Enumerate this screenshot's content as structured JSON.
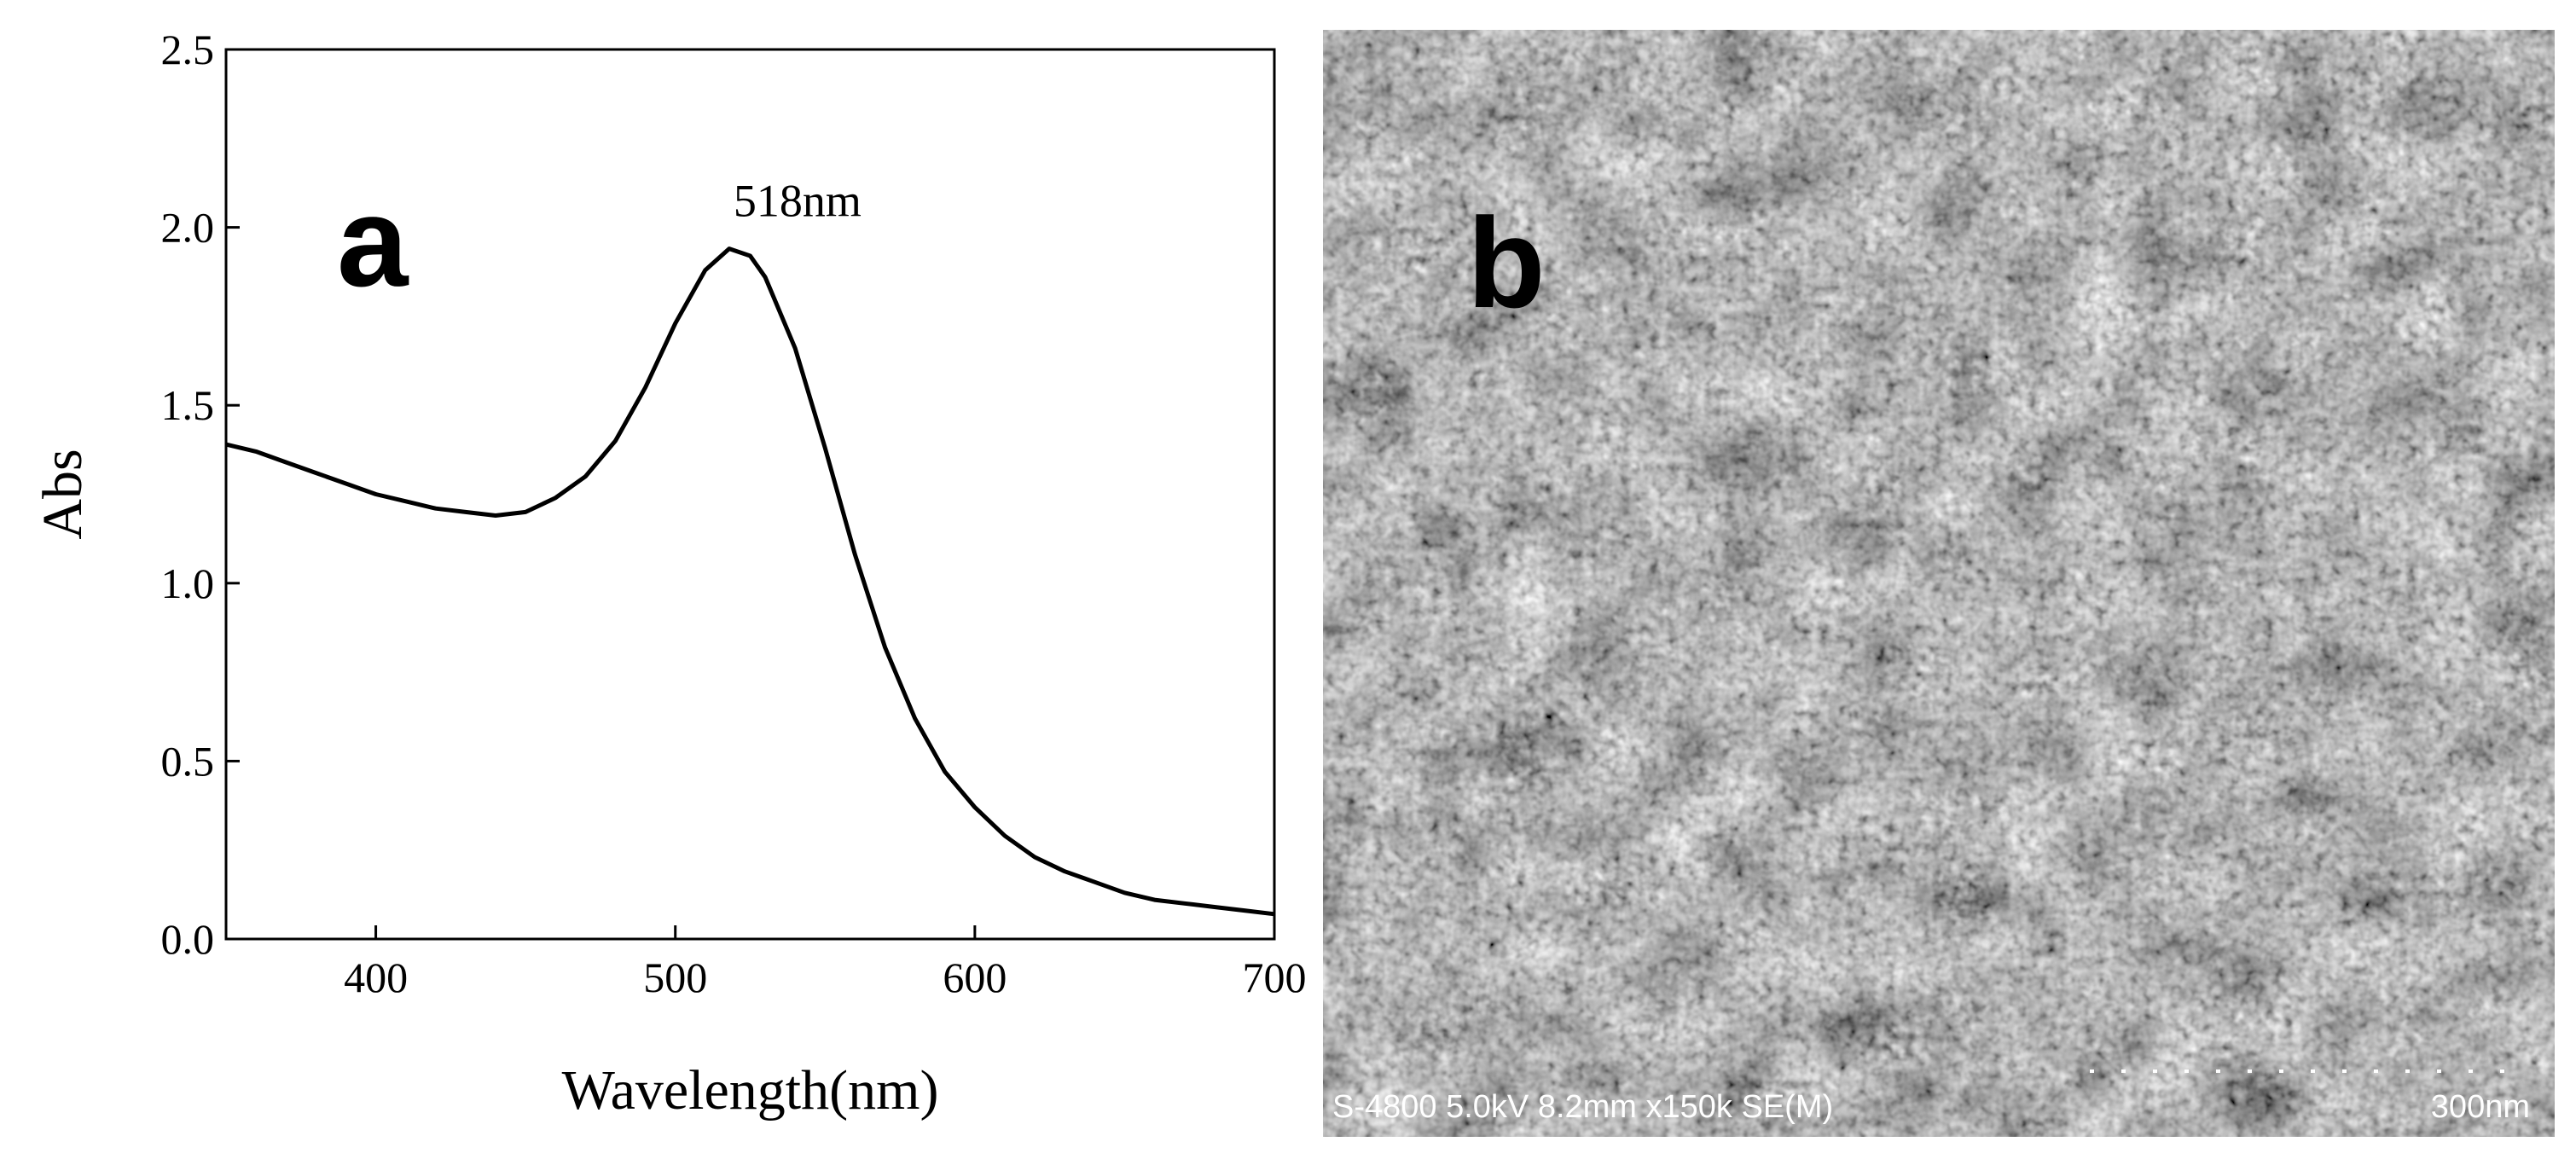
{
  "chart_data": {
    "type": "line",
    "panel_label": "a",
    "xlabel": "Wavelength(nm)",
    "ylabel": "Abs",
    "annotation": "518nm",
    "annotation_x": 518,
    "x": [
      350,
      360,
      370,
      380,
      390,
      400,
      410,
      420,
      430,
      440,
      450,
      460,
      470,
      480,
      490,
      500,
      510,
      518,
      525,
      530,
      540,
      550,
      560,
      570,
      580,
      590,
      600,
      610,
      620,
      630,
      640,
      650,
      660,
      670,
      680,
      690,
      700
    ],
    "values": [
      1.39,
      1.37,
      1.34,
      1.31,
      1.28,
      1.25,
      1.23,
      1.21,
      1.2,
      1.19,
      1.2,
      1.24,
      1.3,
      1.4,
      1.55,
      1.73,
      1.88,
      1.94,
      1.92,
      1.86,
      1.66,
      1.38,
      1.08,
      0.82,
      0.62,
      0.47,
      0.37,
      0.29,
      0.23,
      0.19,
      0.16,
      0.13,
      0.11,
      0.1,
      0.09,
      0.08,
      0.07
    ],
    "color": "#000000",
    "xlim": [
      350,
      700
    ],
    "xticks": [
      400,
      500,
      600,
      700
    ],
    "ylim": [
      0,
      2.5
    ],
    "yticks": [
      {
        "value": 0,
        "label": "0.0"
      },
      {
        "value": 0.5,
        "label": "0.5"
      },
      {
        "value": 1,
        "label": "1.0"
      },
      {
        "value": 1.5,
        "label": "1.5"
      },
      {
        "value": 2,
        "label": "2.0"
      },
      {
        "value": 2.5,
        "label": "2.5"
      }
    ],
    "grid": false
  },
  "image": {
    "panel_label": "b",
    "caption": "S-4800 5.0kV 8.2mm x150k SE(M)",
    "scale_bar": "300nm"
  }
}
